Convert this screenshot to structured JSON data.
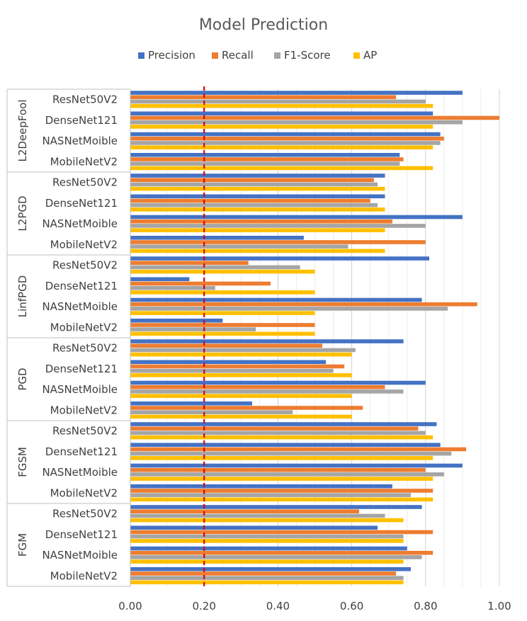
{
  "chart_data": {
    "type": "bar",
    "orientation": "horizontal",
    "title": "Model Prediction",
    "xlim": [
      0,
      1
    ],
    "xticks": [
      "0.00",
      "0.20",
      "0.40",
      "0.60",
      "0.80",
      "1.00"
    ],
    "xtick_values": [
      0,
      0.2,
      0.4,
      0.6,
      0.8,
      1.0
    ],
    "threshold_line": 0.2,
    "legend_position": "top",
    "legend": [
      "Precision",
      "Recall",
      "F1-Score",
      "AP"
    ],
    "series_colors": [
      "#4472C4",
      "#ED7D31",
      "#A5A5A5",
      "#FFC000"
    ],
    "threshold_color": "#E00000",
    "groups": [
      {
        "name": "L2DeepFool",
        "categories": [
          {
            "name": "ResNet50V2",
            "values": [
              0.9,
              0.72,
              0.8,
              0.82
            ]
          },
          {
            "name": "DenseNet121",
            "values": [
              0.82,
              1.0,
              0.9,
              0.82
            ]
          },
          {
            "name": "NASNetMoible",
            "values": [
              0.84,
              0.85,
              0.84,
              0.82
            ]
          },
          {
            "name": "MobileNetV2",
            "values": [
              0.73,
              0.74,
              0.73,
              0.82
            ]
          }
        ]
      },
      {
        "name": "L2PGD",
        "categories": [
          {
            "name": "ResNet50V2",
            "values": [
              0.69,
              0.66,
              0.67,
              0.69
            ]
          },
          {
            "name": "DenseNet121",
            "values": [
              0.69,
              0.65,
              0.67,
              0.69
            ]
          },
          {
            "name": "NASNetMoible",
            "values": [
              0.9,
              0.71,
              0.8,
              0.69
            ]
          },
          {
            "name": "MobileNetV2",
            "values": [
              0.47,
              0.8,
              0.59,
              0.69
            ]
          }
        ]
      },
      {
        "name": "LinfPGD",
        "categories": [
          {
            "name": "ResNet50V2",
            "values": [
              0.81,
              0.32,
              0.46,
              0.5
            ]
          },
          {
            "name": "DenseNet121",
            "values": [
              0.16,
              0.38,
              0.23,
              0.5
            ]
          },
          {
            "name": "NASNetMoible",
            "values": [
              0.79,
              0.94,
              0.86,
              0.5
            ]
          },
          {
            "name": "MobileNetV2",
            "values": [
              0.25,
              0.5,
              0.34,
              0.5
            ]
          }
        ]
      },
      {
        "name": "PGD",
        "categories": [
          {
            "name": "ResNet50V2",
            "values": [
              0.74,
              0.52,
              0.61,
              0.6
            ]
          },
          {
            "name": "DenseNet121",
            "values": [
              0.53,
              0.58,
              0.55,
              0.6
            ]
          },
          {
            "name": "NASNetMoible",
            "values": [
              0.8,
              0.69,
              0.74,
              0.6
            ]
          },
          {
            "name": "MobileNetV2",
            "values": [
              0.33,
              0.63,
              0.44,
              0.6
            ]
          }
        ]
      },
      {
        "name": "FGSM",
        "categories": [
          {
            "name": "ResNet50V2",
            "values": [
              0.83,
              0.78,
              0.8,
              0.82
            ]
          },
          {
            "name": "DenseNet121",
            "values": [
              0.84,
              0.91,
              0.87,
              0.82
            ]
          },
          {
            "name": "NASNetMoible",
            "values": [
              0.9,
              0.8,
              0.85,
              0.82
            ]
          },
          {
            "name": "MobileNetV2",
            "values": [
              0.71,
              0.82,
              0.76,
              0.82
            ]
          }
        ]
      },
      {
        "name": "FGM",
        "categories": [
          {
            "name": "ResNet50V2",
            "values": [
              0.79,
              0.62,
              0.69,
              0.74
            ]
          },
          {
            "name": "DenseNet121",
            "values": [
              0.67,
              0.82,
              0.74,
              0.74
            ]
          },
          {
            "name": "NASNetMoible",
            "values": [
              0.75,
              0.82,
              0.79,
              0.74
            ]
          },
          {
            "name": "MobileNetV2",
            "values": [
              0.76,
              0.72,
              0.74,
              0.74
            ]
          }
        ]
      }
    ]
  }
}
